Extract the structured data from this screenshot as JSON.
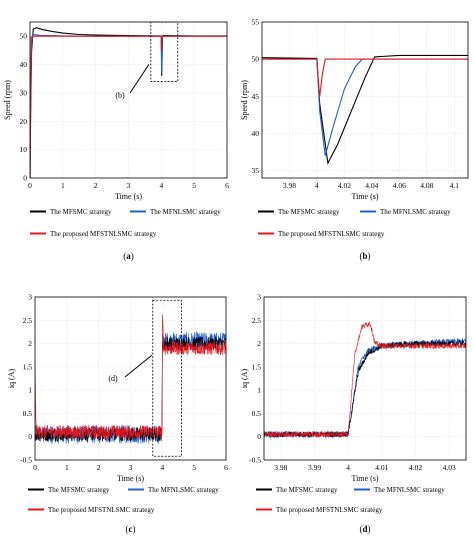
{
  "colors": {
    "mfsmc": "#000000",
    "mfnlsmc": "#1f5fd0",
    "proposed": "#e8141c",
    "dashbox": "#000000"
  },
  "chart_data": [
    {
      "panel": "a",
      "type": "line",
      "xlabel": "Time (s)",
      "ylabel": "Speed (rpm)",
      "xlim": [
        0,
        6
      ],
      "ylim": [
        0,
        55
      ],
      "xticks": [
        "0",
        "1",
        "2",
        "3",
        "4",
        "5",
        "6"
      ],
      "yticks": [
        "0",
        "10",
        "20",
        "30",
        "40",
        "50"
      ],
      "annotation": "(b)",
      "caption_open": "(",
      "caption_letter": "a",
      "caption_close": ")",
      "legend": [
        "The MFSMC strategy",
        "The MFNLSMC strategy",
        "The proposed MFSTNLSMC strategy"
      ],
      "series": [
        {
          "name": "The MFSMC strategy",
          "color": "mfsmc",
          "x": [
            0,
            0.02,
            0.05,
            0.1,
            0.2,
            0.4,
            0.7,
            1.0,
            1.5,
            2.0,
            3.0,
            4.0,
            4.01,
            4.04,
            4.05,
            5.0,
            6.0
          ],
          "y": [
            0,
            25,
            45,
            52.5,
            53,
            52.3,
            51.6,
            51.1,
            50.6,
            50.4,
            50.2,
            50.1,
            36,
            50,
            50.2,
            50.1,
            50.1
          ]
        },
        {
          "name": "The MFNLSMC strategy",
          "color": "mfnlsmc",
          "x": [
            0,
            0.02,
            0.05,
            0.1,
            0.3,
            1.0,
            2.0,
            3.0,
            4.0,
            4.008,
            4.03,
            4.04,
            5.0,
            6.0
          ],
          "y": [
            0,
            30,
            48,
            50.6,
            50.3,
            50.1,
            50.0,
            50.0,
            50.0,
            37,
            49,
            50,
            50,
            50
          ]
        },
        {
          "name": "The proposed MFSTNLSMC strategy",
          "color": "proposed",
          "x": [
            0,
            0.02,
            0.04,
            0.07,
            0.1,
            1.0,
            2.0,
            3.0,
            4.0,
            4.002,
            4.005,
            4.01,
            5.0,
            6.0
          ],
          "y": [
            0,
            32,
            49.5,
            50,
            50,
            50,
            50,
            50,
            50,
            45,
            50,
            50,
            50,
            50
          ]
        }
      ]
    },
    {
      "panel": "b",
      "type": "line",
      "xlabel": "Time (s)",
      "ylabel": "Speed (rpm)",
      "xlim": [
        3.96,
        4.11
      ],
      "ylim": [
        34,
        55
      ],
      "xticks": [
        "3.98",
        "4",
        "4.02",
        "4.04",
        "4.06",
        "4.08",
        "4.1"
      ],
      "yticks": [
        "35",
        "40",
        "45",
        "50",
        "55"
      ],
      "caption_open": "(",
      "caption_letter": "b",
      "caption_close": ")",
      "legend": [
        "The MFSMC strategy",
        "The MFNLSMC strategy",
        "The proposed MFSTNLSMC strategy"
      ],
      "series": [
        {
          "name": "The MFSMC strategy",
          "color": "mfsmc",
          "x": [
            3.96,
            4.0,
            4.002,
            4.008,
            4.015,
            4.025,
            4.035,
            4.042,
            4.06,
            4.08,
            4.11
          ],
          "y": [
            50.2,
            50.1,
            44,
            36,
            38.5,
            43,
            47.5,
            50.3,
            50.5,
            50.5,
            50.5
          ]
        },
        {
          "name": "The MFNLSMC strategy",
          "color": "mfnlsmc",
          "x": [
            3.96,
            4.0,
            4.002,
            4.006,
            4.012,
            4.02,
            4.028,
            4.033,
            4.06,
            4.11
          ],
          "y": [
            50.0,
            50.0,
            43,
            37,
            41,
            46,
            49,
            50,
            50,
            50
          ]
        },
        {
          "name": "The proposed MFSTNLSMC strategy",
          "color": "proposed",
          "x": [
            3.96,
            4.0,
            4.001,
            4.002,
            4.004,
            4.006,
            4.03,
            4.11
          ],
          "y": [
            50.0,
            50.0,
            47,
            45,
            48,
            50,
            50,
            50
          ]
        }
      ]
    },
    {
      "panel": "c",
      "type": "line",
      "xlabel": "Time (s)",
      "ylabel": "iq (A)",
      "xlim": [
        0,
        6
      ],
      "ylim": [
        -0.5,
        3
      ],
      "xticks": [
        "0",
        "1",
        "2",
        "3",
        "4",
        "5",
        "6"
      ],
      "yticks": [
        "-0.5",
        "0",
        "0.5",
        "1",
        "1.5",
        "2",
        "2.5",
        "3"
      ],
      "annotation": "(d)",
      "caption_open": "(",
      "caption_letter": "c",
      "caption_close": ")",
      "legend": [
        "The MFSMC strategy",
        "The MFNLSMC strategy",
        "The proposed MFSTNLSMC strategy"
      ],
      "series": [
        {
          "name": "The MFNLSMC strategy",
          "color": "mfnlsmc",
          "noise": 0.2,
          "x": [
            0,
            3.99,
            4.0,
            6.0
          ],
          "y": [
            0.05,
            0.05,
            2.05,
            2.05
          ]
        },
        {
          "name": "The MFSMC strategy",
          "color": "mfsmc",
          "noise": 0.15,
          "x": [
            0,
            3.99,
            4.0,
            6.0
          ],
          "y": [
            0.05,
            0.05,
            2.0,
            2.0
          ]
        },
        {
          "name": "The proposed MFSTNLSMC strategy",
          "color": "proposed",
          "noise": 0.15,
          "x": [
            0,
            0.02,
            0.05,
            3.99,
            4.0,
            4.005,
            4.05,
            6.0
          ],
          "y": [
            1.5,
            0.6,
            0.1,
            0.1,
            2.6,
            2.5,
            1.9,
            1.9
          ]
        }
      ]
    },
    {
      "panel": "d",
      "type": "line",
      "xlabel": "Time (s)",
      "ylabel": "iq (A)",
      "xlim": [
        3.975,
        4.035
      ],
      "ylim": [
        -0.5,
        3
      ],
      "xticks": [
        "3.98",
        "3.99",
        "4",
        "4.01",
        "4.02",
        "4.03"
      ],
      "yticks": [
        "-0.5",
        "0",
        "0.5",
        "1",
        "1.5",
        "2",
        "2.5",
        "3"
      ],
      "caption_open": "(",
      "caption_letter": "d",
      "caption_close": ")",
      "legend": [
        "The MFSMC strategy",
        "The MFNLSMC strategy",
        "The proposed MFSTNLSMC strategy"
      ],
      "series": [
        {
          "name": "The MFNLSMC strategy",
          "color": "mfnlsmc",
          "noise": 0.07,
          "x": [
            3.975,
            4.0,
            4.003,
            4.006,
            4.01,
            4.02,
            4.035
          ],
          "y": [
            0.05,
            0.05,
            1.5,
            1.85,
            1.95,
            2.0,
            2.05
          ]
        },
        {
          "name": "The MFSMC strategy",
          "color": "mfsmc",
          "noise": 0.06,
          "x": [
            3.975,
            4.0,
            4.003,
            4.006,
            4.01,
            4.02,
            4.035
          ],
          "y": [
            0.05,
            0.05,
            1.4,
            1.8,
            1.95,
            2.0,
            2.0
          ]
        },
        {
          "name": "The proposed MFSTNLSMC strategy",
          "color": "proposed",
          "noise": 0.06,
          "x": [
            3.975,
            4.0,
            4.002,
            4.004,
            4.0065,
            4.008,
            4.01,
            4.035
          ],
          "y": [
            0.05,
            0.05,
            1.8,
            2.35,
            2.45,
            2.0,
            1.95,
            1.95
          ]
        }
      ]
    }
  ]
}
